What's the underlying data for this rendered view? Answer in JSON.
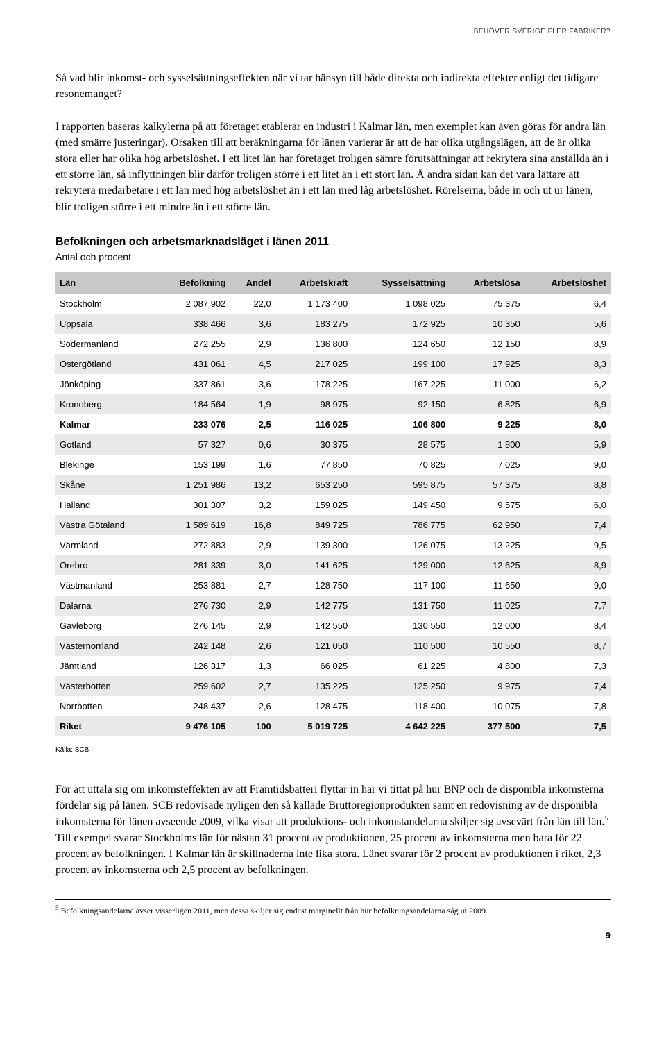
{
  "header": {
    "label": "BEHÖVER SVERIGE FLER FABRIKER?"
  },
  "para1": "Så vad blir inkomst- och sysselsättningseffekten när vi tar hänsyn till både direkta och indirekta effekter enligt det tidigare resonemanget?",
  "para2": "I rapporten baseras kalkylerna på att företaget etablerar en industri i Kalmar län, men exemplet kan även göras för andra län (med smärre justeringar). Orsaken till att beräkningarna för länen varierar är att de har olika utgångslägen, att de är olika stora eller har olika hög arbetslöshet. I ett litet län har företaget troligen sämre förutsättningar att rekrytera sina anställda än i ett större län, så inflyttningen blir därför troligen större i ett litet än i ett stort län. Å andra sidan kan det vara lättare att rekrytera medarbetare i ett län med hög arbetslöshet än i ett län med låg arbetslöshet. Rörelserna, både in och ut ur länen, blir troligen större i ett mindre än i ett större län.",
  "table": {
    "title": "Befolkningen och arbetsmarknadsläget i länen 2011",
    "subtitle": "Antal och procent",
    "columns": [
      "Län",
      "Befolkning",
      "Andel",
      "Arbetskraft",
      "Sysselsättning",
      "Arbetslösa",
      "Arbetslöshet"
    ],
    "rows": [
      {
        "c": [
          "Stockholm",
          "2 087 902",
          "22,0",
          "1 173 400",
          "1 098 025",
          "75 375",
          "6,4"
        ],
        "shade": false,
        "bold": false
      },
      {
        "c": [
          "Uppsala",
          "338 466",
          "3,6",
          "183 275",
          "172 925",
          "10 350",
          "5,6"
        ],
        "shade": true,
        "bold": false
      },
      {
        "c": [
          "Södermanland",
          "272 255",
          "2,9",
          "136 800",
          "124 650",
          "12 150",
          "8,9"
        ],
        "shade": false,
        "bold": false
      },
      {
        "c": [
          "Östergötland",
          "431 061",
          "4,5",
          "217 025",
          "199 100",
          "17 925",
          "8,3"
        ],
        "shade": true,
        "bold": false
      },
      {
        "c": [
          "Jönköping",
          "337 861",
          "3,6",
          "178 225",
          "167 225",
          "11 000",
          "6,2"
        ],
        "shade": false,
        "bold": false
      },
      {
        "c": [
          "Kronoberg",
          "184 564",
          "1,9",
          "98 975",
          "92 150",
          "6 825",
          "6,9"
        ],
        "shade": true,
        "bold": false
      },
      {
        "c": [
          "Kalmar",
          "233 076",
          "2,5",
          "116 025",
          "106 800",
          "9 225",
          "8,0"
        ],
        "shade": false,
        "bold": true
      },
      {
        "c": [
          "Gotland",
          "57 327",
          "0,6",
          "30 375",
          "28 575",
          "1 800",
          "5,9"
        ],
        "shade": true,
        "bold": false
      },
      {
        "c": [
          "Blekinge",
          "153 199",
          "1,6",
          "77 850",
          "70 825",
          "7 025",
          "9,0"
        ],
        "shade": false,
        "bold": false
      },
      {
        "c": [
          "Skåne",
          "1 251 986",
          "13,2",
          "653 250",
          "595 875",
          "57 375",
          "8,8"
        ],
        "shade": true,
        "bold": false
      },
      {
        "c": [
          "Halland",
          "301 307",
          "3,2",
          "159 025",
          "149 450",
          "9 575",
          "6,0"
        ],
        "shade": false,
        "bold": false
      },
      {
        "c": [
          "Västra Götaland",
          "1 589 619",
          "16,8",
          "849 725",
          "786 775",
          "62 950",
          "7,4"
        ],
        "shade": true,
        "bold": false
      },
      {
        "c": [
          "Värmland",
          "272 883",
          "2,9",
          "139 300",
          "126 075",
          "13 225",
          "9,5"
        ],
        "shade": false,
        "bold": false
      },
      {
        "c": [
          "Örebro",
          "281 339",
          "3,0",
          "141 625",
          "129 000",
          "12 625",
          "8,9"
        ],
        "shade": true,
        "bold": false
      },
      {
        "c": [
          "Västmanland",
          "253 881",
          "2,7",
          "128 750",
          "117 100",
          "11 650",
          "9,0"
        ],
        "shade": false,
        "bold": false
      },
      {
        "c": [
          "Dalarna",
          "276 730",
          "2,9",
          "142 775",
          "131 750",
          "11 025",
          "7,7"
        ],
        "shade": true,
        "bold": false
      },
      {
        "c": [
          "Gävleborg",
          "276 145",
          "2,9",
          "142 550",
          "130 550",
          "12 000",
          "8,4"
        ],
        "shade": false,
        "bold": false
      },
      {
        "c": [
          "Västernorrland",
          "242 148",
          "2,6",
          "121 050",
          "110 500",
          "10 550",
          "8,7"
        ],
        "shade": true,
        "bold": false
      },
      {
        "c": [
          "Jämtland",
          "126 317",
          "1,3",
          "66 025",
          "61 225",
          "4 800",
          "7,3"
        ],
        "shade": false,
        "bold": false
      },
      {
        "c": [
          "Västerbotten",
          "259 602",
          "2,7",
          "135 225",
          "125 250",
          "9 975",
          "7,4"
        ],
        "shade": true,
        "bold": false
      },
      {
        "c": [
          "Norrbotten",
          "248 437",
          "2,6",
          "128 475",
          "118 400",
          "10 075",
          "7,8"
        ],
        "shade": false,
        "bold": false
      },
      {
        "c": [
          "Riket",
          "9 476 105",
          "100",
          "5 019 725",
          "4 642 225",
          "377 500",
          "7,5"
        ],
        "shade": true,
        "bold": true
      }
    ],
    "source": "Källa: SCB"
  },
  "para3a": "För att uttala sig om inkomsteffekten av att Framtidsbatteri flyttar in har vi tittat på hur BNP och de disponibla inkomsterna fördelar sig på länen. SCB redovisade nyligen den så kallade Bruttoregionprodukten samt en redovisning av de disponibla inkomsterna för länen avseende 2009, vilka visar att produktions- och inkomstandelarna skiljer sig avsevärt från län till län.",
  "para3b": " Till exempel svarar Stockholms län för nästan 31 procent av produktionen, 25 procent av inkomsterna men bara för 22 procent av befolkningen. I Kalmar län är skillnaderna inte lika stora. Länet svarar för 2 procent av produktionen i riket, 2,3 procent av inkomsterna och 2,5 procent av befolkningen.",
  "footnote": {
    "num": "5",
    "text": "Befolkningsandelarna avser visserligen 2011, men dessa skiljer sig endast marginellt från hur befolkningsandelarna såg ut 2009."
  },
  "pageNumber": "9"
}
